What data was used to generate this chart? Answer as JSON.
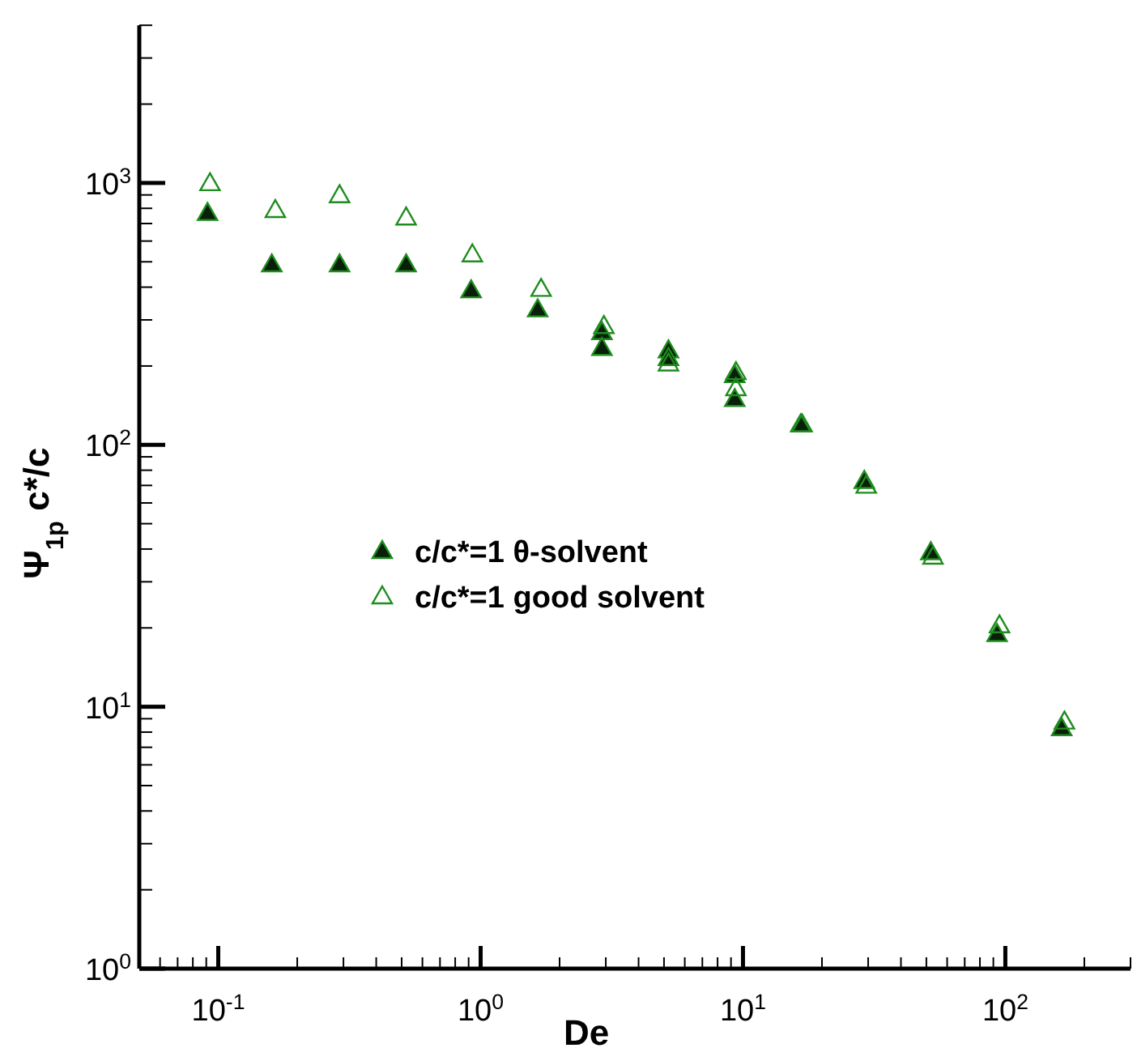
{
  "chart_data": {
    "type": "scatter",
    "xlabel": "De",
    "ylabel": "Ψ$_{1p}$ c*/c",
    "log": "xy",
    "legend": "left",
    "marker": "triangle",
    "xlim": [
      0.05,
      300
    ],
    "ylim": [
      1,
      4000
    ],
    "xticks": [
      {
        "value": 0.06,
        "label": null
      },
      {
        "value": 0.07,
        "label": null
      },
      {
        "value": 0.08,
        "label": null
      },
      {
        "value": 0.09,
        "label": null
      },
      {
        "value": 0.1,
        "label": "10$^{-1}$"
      },
      {
        "value": 0.2,
        "label": null
      },
      {
        "value": 0.3,
        "label": null
      },
      {
        "value": 0.4,
        "label": null
      },
      {
        "value": 0.5,
        "label": null
      },
      {
        "value": 0.6,
        "label": null
      },
      {
        "value": 0.7,
        "label": null
      },
      {
        "value": 0.8,
        "label": null
      },
      {
        "value": 0.9,
        "label": null
      },
      {
        "value": 1,
        "label": "10$^{0}$"
      },
      {
        "value": 2,
        "label": null
      },
      {
        "value": 3,
        "label": null
      },
      {
        "value": 4,
        "label": null
      },
      {
        "value": 5,
        "label": null
      },
      {
        "value": 6,
        "label": null
      },
      {
        "value": 7,
        "label": null
      },
      {
        "value": 8,
        "label": null
      },
      {
        "value": 9,
        "label": null
      },
      {
        "value": 10,
        "label": "10$^{1}$"
      },
      {
        "value": 20,
        "label": null
      },
      {
        "value": 30,
        "label": null
      },
      {
        "value": 40,
        "label": null
      },
      {
        "value": 50,
        "label": null
      },
      {
        "value": 60,
        "label": null
      },
      {
        "value": 70,
        "label": null
      },
      {
        "value": 80,
        "label": null
      },
      {
        "value": 90,
        "label": null
      },
      {
        "value": 100,
        "label": "10$^{2}$"
      },
      {
        "value": 200,
        "label": null
      },
      {
        "value": 300,
        "label": null
      }
    ],
    "yticks": [
      {
        "value": 1,
        "label": "10$^{0}$"
      },
      {
        "value": 2,
        "label": null
      },
      {
        "value": 3,
        "label": null
      },
      {
        "value": 4,
        "label": null
      },
      {
        "value": 5,
        "label": null
      },
      {
        "value": 6,
        "label": null
      },
      {
        "value": 7,
        "label": null
      },
      {
        "value": 8,
        "label": null
      },
      {
        "value": 9,
        "label": null
      },
      {
        "value": 10,
        "label": "10$^{1}$"
      },
      {
        "value": 20,
        "label": null
      },
      {
        "value": 30,
        "label": null
      },
      {
        "value": 40,
        "label": null
      },
      {
        "value": 50,
        "label": null
      },
      {
        "value": 60,
        "label": null
      },
      {
        "value": 70,
        "label": null
      },
      {
        "value": 80,
        "label": null
      },
      {
        "value": 90,
        "label": null
      },
      {
        "value": 100,
        "label": "10$^{2}$"
      },
      {
        "value": 200,
        "label": null
      },
      {
        "value": 300,
        "label": null
      },
      {
        "value": 400,
        "label": null
      },
      {
        "value": 500,
        "label": null
      },
      {
        "value": 600,
        "label": null
      },
      {
        "value": 700,
        "label": null
      },
      {
        "value": 800,
        "label": null
      },
      {
        "value": 900,
        "label": null
      },
      {
        "value": 1000,
        "label": "10$^{3}$"
      },
      {
        "value": 2000,
        "label": null
      },
      {
        "value": 3000,
        "label": null
      },
      {
        "value": 4000,
        "label": null
      }
    ],
    "series": [
      {
        "name": "c/c*=1 θ-solvent",
        "color": "#0a1f0a",
        "marker": "triangle",
        "x": [
          0.091,
          0.16,
          0.29,
          0.52,
          0.92,
          1.65,
          2.9,
          2.9,
          5.2,
          5.2,
          9.3,
          9.3,
          16.6,
          29,
          52,
          93,
          164
        ],
        "values": [
          770,
          490,
          490,
          490,
          390,
          330,
          270,
          235,
          230,
          215,
          185,
          150,
          120,
          73,
          39,
          19,
          8.3
        ]
      },
      {
        "name": "c/c*=1 good solvent",
        "color": "#1e8c1e",
        "marker": "triangle-open",
        "x": [
          0.093,
          0.165,
          0.29,
          0.52,
          0.93,
          1.7,
          2.95,
          5.2,
          9.4,
          9.4,
          16.8,
          29.5,
          53,
          95,
          168
        ],
        "values": [
          1000,
          790,
          900,
          740,
          535,
          395,
          285,
          205,
          190,
          165,
          120,
          70,
          37.5,
          20.5,
          8.8
        ]
      }
    ]
  }
}
